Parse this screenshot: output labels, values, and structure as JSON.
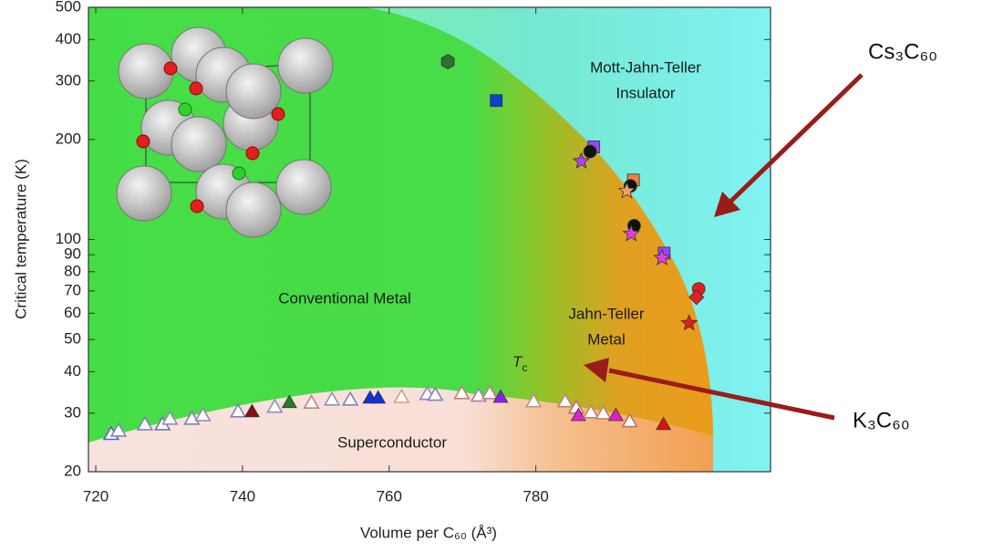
{
  "chart_data": {
    "type": "scatter",
    "x_label": "Volume per C₆₀ (Å³)",
    "y_label": "Critical temperature (K)",
    "xlim": [
      719,
      812
    ],
    "xticks": [
      720,
      740,
      760,
      780
    ],
    "ylim": [
      20,
      500
    ],
    "yticks": [
      20,
      30,
      40,
      50,
      60,
      70,
      80,
      90,
      100,
      200,
      300,
      400,
      500
    ],
    "y_scale": "log",
    "regions": [
      "Mott-Jahn-Teller",
      "Insulator",
      "Jahn-Teller",
      "Metal",
      "Conventional Metal",
      "Superconductor"
    ],
    "tc_label": {
      "symbol": "T",
      "subscript": "c"
    },
    "annotations": [
      "Cs₃C₆₀",
      "K₃C₆₀"
    ],
    "points": [
      {
        "x": 768.0,
        "y": 343,
        "shape": "hexagon",
        "color": "#2f6f2f",
        "filled": true
      },
      {
        "x": 774.6,
        "y": 262,
        "shape": "square",
        "color": "#1040d0",
        "filled": true
      },
      {
        "x": 787.9,
        "y": 190,
        "shape": "square",
        "color": "#a040ff",
        "filled": true
      },
      {
        "x": 787.4,
        "y": 184,
        "shape": "circle",
        "color": "#111111",
        "filled": true
      },
      {
        "x": 786.2,
        "y": 172,
        "shape": "star",
        "color": "#b040f0",
        "filled": true
      },
      {
        "x": 793.3,
        "y": 151,
        "shape": "square",
        "color": "#f08040",
        "filled": true
      },
      {
        "x": 792.9,
        "y": 145,
        "shape": "circle",
        "color": "#111111",
        "filled": true
      },
      {
        "x": 792.4,
        "y": 140,
        "shape": "star",
        "color": "#f0a060",
        "filled": true
      },
      {
        "x": 793.4,
        "y": 110,
        "shape": "circle",
        "color": "#111111",
        "filled": true
      },
      {
        "x": 793.0,
        "y": 104,
        "shape": "star",
        "color": "#e040e0",
        "filled": true
      },
      {
        "x": 797.5,
        "y": 91,
        "shape": "square",
        "color": "#a040ff",
        "filled": true
      },
      {
        "x": 797.2,
        "y": 88,
        "shape": "star",
        "color": "#e040e0",
        "filled": true
      },
      {
        "x": 802.2,
        "y": 71,
        "shape": "circle",
        "color": "#e02020",
        "filled": true
      },
      {
        "x": 801.9,
        "y": 67,
        "shape": "diamond",
        "color": "#e02020",
        "filled": true
      },
      {
        "x": 800.9,
        "y": 56,
        "shape": "star",
        "color": "#e02020",
        "filled": true
      },
      {
        "x": 722.1,
        "y": 26.0,
        "shape": "triangle",
        "color": "#6060c0",
        "filled": false
      },
      {
        "x": 723.1,
        "y": 26.6,
        "shape": "triangle",
        "color": "#8080c0",
        "filled": false
      },
      {
        "x": 726.7,
        "y": 27.8,
        "shape": "triangle",
        "color": "#8080c0",
        "filled": false
      },
      {
        "x": 729.1,
        "y": 27.8,
        "shape": "triangle",
        "color": "#7070b0",
        "filled": false
      },
      {
        "x": 730.1,
        "y": 28.9,
        "shape": "triangle",
        "color": "#9090c0",
        "filled": false
      },
      {
        "x": 733.1,
        "y": 28.9,
        "shape": "triangle",
        "color": "#8080c0",
        "filled": false
      },
      {
        "x": 734.6,
        "y": 29.6,
        "shape": "triangle",
        "color": "#a080c0",
        "filled": false
      },
      {
        "x": 739.4,
        "y": 30.4,
        "shape": "triangle",
        "color": "#8080c0",
        "filled": false
      },
      {
        "x": 741.3,
        "y": 30.4,
        "shape": "triangle",
        "color": "#801010",
        "filled": true
      },
      {
        "x": 744.4,
        "y": 31.4,
        "shape": "triangle",
        "color": "#9090c0",
        "filled": false
      },
      {
        "x": 746.4,
        "y": 32.4,
        "shape": "triangle",
        "color": "#208020",
        "filled": true
      },
      {
        "x": 749.4,
        "y": 32.3,
        "shape": "triangle",
        "color": "#c08080",
        "filled": false
      },
      {
        "x": 752.2,
        "y": 33.0,
        "shape": "triangle",
        "color": "#9090c0",
        "filled": false
      },
      {
        "x": 754.7,
        "y": 33.0,
        "shape": "triangle",
        "color": "#8080b0",
        "filled": false
      },
      {
        "x": 757.4,
        "y": 33.4,
        "shape": "triangle",
        "color": "#1030e0",
        "filled": true
      },
      {
        "x": 758.5,
        "y": 33.4,
        "shape": "triangle",
        "color": "#1030e0",
        "filled": true
      },
      {
        "x": 761.7,
        "y": 33.6,
        "shape": "triangle",
        "color": "#d0a080",
        "filled": false
      },
      {
        "x": 765.2,
        "y": 34.3,
        "shape": "triangle",
        "color": "#a080c0",
        "filled": false
      },
      {
        "x": 766.3,
        "y": 34.1,
        "shape": "triangle",
        "color": "#8080c0",
        "filled": false
      },
      {
        "x": 769.9,
        "y": 34.5,
        "shape": "triangle",
        "color": "#c08080",
        "filled": false
      },
      {
        "x": 772.2,
        "y": 33.9,
        "shape": "triangle",
        "color": "#a080a0",
        "filled": false
      },
      {
        "x": 773.7,
        "y": 34.5,
        "shape": "triangle",
        "color": "#c08080",
        "filled": false
      },
      {
        "x": 775.2,
        "y": 33.6,
        "shape": "triangle",
        "color": "#8a20f0",
        "filled": true
      },
      {
        "x": 779.7,
        "y": 32.6,
        "shape": "triangle",
        "color": "#c09080",
        "filled": false
      },
      {
        "x": 784.0,
        "y": 32.6,
        "shape": "triangle",
        "color": "#c08070",
        "filled": false
      },
      {
        "x": 785.5,
        "y": 31.2,
        "shape": "triangle",
        "color": "#c07070",
        "filled": false
      },
      {
        "x": 785.8,
        "y": 29.6,
        "shape": "triangle",
        "color": "#e020d0",
        "filled": true
      },
      {
        "x": 787.5,
        "y": 30.2,
        "shape": "triangle",
        "color": "#c08080",
        "filled": false
      },
      {
        "x": 789.2,
        "y": 30.0,
        "shape": "triangle",
        "color": "#c08080",
        "filled": false
      },
      {
        "x": 790.9,
        "y": 29.6,
        "shape": "triangle",
        "color": "#e020d0",
        "filled": true
      },
      {
        "x": 792.8,
        "y": 28.4,
        "shape": "triangle",
        "color": "#c07070",
        "filled": false
      },
      {
        "x": 797.4,
        "y": 27.8,
        "shape": "triangle",
        "color": "#e01010",
        "filled": true
      }
    ]
  }
}
